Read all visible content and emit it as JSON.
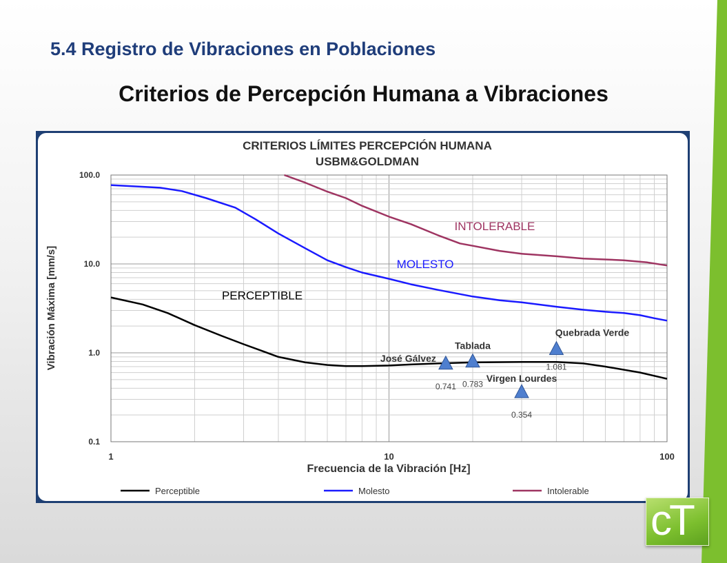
{
  "slide": {
    "title": "5.4 Registro de Vibraciones en Poblaciones",
    "subtitle": "Criterios de Percepción Humana a Vibraciones",
    "accent_color": "#7cbf2e"
  },
  "chart_data": {
    "type": "line",
    "title": "CRITERIOS LÍMITES PERCEPCIÓN HUMANA",
    "subtitle": "USBM&GOLDMAN",
    "xlabel": "Frecuencia de la Vibración [Hz]",
    "ylabel": "Vibración Máxima [mm/s]",
    "x_scale": "log",
    "y_scale": "log",
    "xlim": [
      1,
      100
    ],
    "ylim": [
      0.1,
      100
    ],
    "x_ticks": [
      {
        "v": 1,
        "label": "1"
      },
      {
        "v": 10,
        "label": "10"
      },
      {
        "v": 100,
        "label": "100"
      }
    ],
    "y_ticks": [
      {
        "v": 0.1,
        "label": "0.1"
      },
      {
        "v": 1,
        "label": "1.0"
      },
      {
        "v": 10,
        "label": "10.0"
      },
      {
        "v": 100,
        "label": "100.0"
      }
    ],
    "grid": true,
    "legend_position": "bottom",
    "series": [
      {
        "name": "Perceptible",
        "region_label": "PERCEPTIBLE",
        "region_label_at": [
          3.5,
          4.0
        ],
        "color": "#000000",
        "points": [
          [
            1,
            4.2
          ],
          [
            1.3,
            3.5
          ],
          [
            1.6,
            2.8
          ],
          [
            2,
            2.05
          ],
          [
            2.5,
            1.55
          ],
          [
            3,
            1.25
          ],
          [
            3.5,
            1.05
          ],
          [
            4,
            0.9
          ],
          [
            5,
            0.78
          ],
          [
            6,
            0.73
          ],
          [
            7,
            0.71
          ],
          [
            8,
            0.71
          ],
          [
            10,
            0.72
          ],
          [
            12,
            0.74
          ],
          [
            15,
            0.76
          ],
          [
            20,
            0.78
          ],
          [
            30,
            0.79
          ],
          [
            40,
            0.79
          ],
          [
            50,
            0.76
          ],
          [
            60,
            0.7
          ],
          [
            80,
            0.6
          ],
          [
            100,
            0.51
          ]
        ]
      },
      {
        "name": "Molesto",
        "region_label": "MOLESTO",
        "region_label_at": [
          13.5,
          9.0
        ],
        "color": "#1a1aff",
        "points": [
          [
            1,
            77
          ],
          [
            1.5,
            72
          ],
          [
            1.8,
            66
          ],
          [
            2.2,
            55
          ],
          [
            2.8,
            43
          ],
          [
            3.3,
            32
          ],
          [
            4,
            22
          ],
          [
            5,
            15
          ],
          [
            6,
            11
          ],
          [
            7,
            9.2
          ],
          [
            8,
            8
          ],
          [
            10,
            6.8
          ],
          [
            12,
            5.9
          ],
          [
            15,
            5.1
          ],
          [
            20,
            4.3
          ],
          [
            25,
            3.9
          ],
          [
            30,
            3.7
          ],
          [
            40,
            3.3
          ],
          [
            50,
            3.05
          ],
          [
            60,
            2.9
          ],
          [
            70,
            2.8
          ],
          [
            80,
            2.65
          ],
          [
            90,
            2.45
          ],
          [
            100,
            2.3
          ]
        ]
      },
      {
        "name": "Intolerable",
        "region_label": "INTOLERABLE",
        "region_label_at": [
          24,
          24.0
        ],
        "color": "#9e3461",
        "points": [
          [
            4.2,
            100
          ],
          [
            5,
            82
          ],
          [
            6,
            65
          ],
          [
            7,
            55
          ],
          [
            8,
            45
          ],
          [
            10,
            34
          ],
          [
            12,
            28
          ],
          [
            15,
            21
          ],
          [
            18,
            17
          ],
          [
            20,
            16
          ],
          [
            25,
            14
          ],
          [
            30,
            13
          ],
          [
            40,
            12.2
          ],
          [
            50,
            11.5
          ],
          [
            70,
            11
          ],
          [
            85,
            10.4
          ],
          [
            100,
            9.6
          ]
        ]
      }
    ],
    "markers": [
      {
        "name": "José Gálvez",
        "freq": 16.0,
        "value": 0.741
      },
      {
        "name": "Tablada",
        "freq": 20.0,
        "value": 0.783
      },
      {
        "name": "Virgen Lourdes",
        "freq": 30.0,
        "value": 0.354
      },
      {
        "name": "Quebrada Verde",
        "freq": 40.0,
        "value": 1.081
      }
    ],
    "marker_style": {
      "fill": "#4f7fcf",
      "stroke": "#2f5597"
    }
  }
}
